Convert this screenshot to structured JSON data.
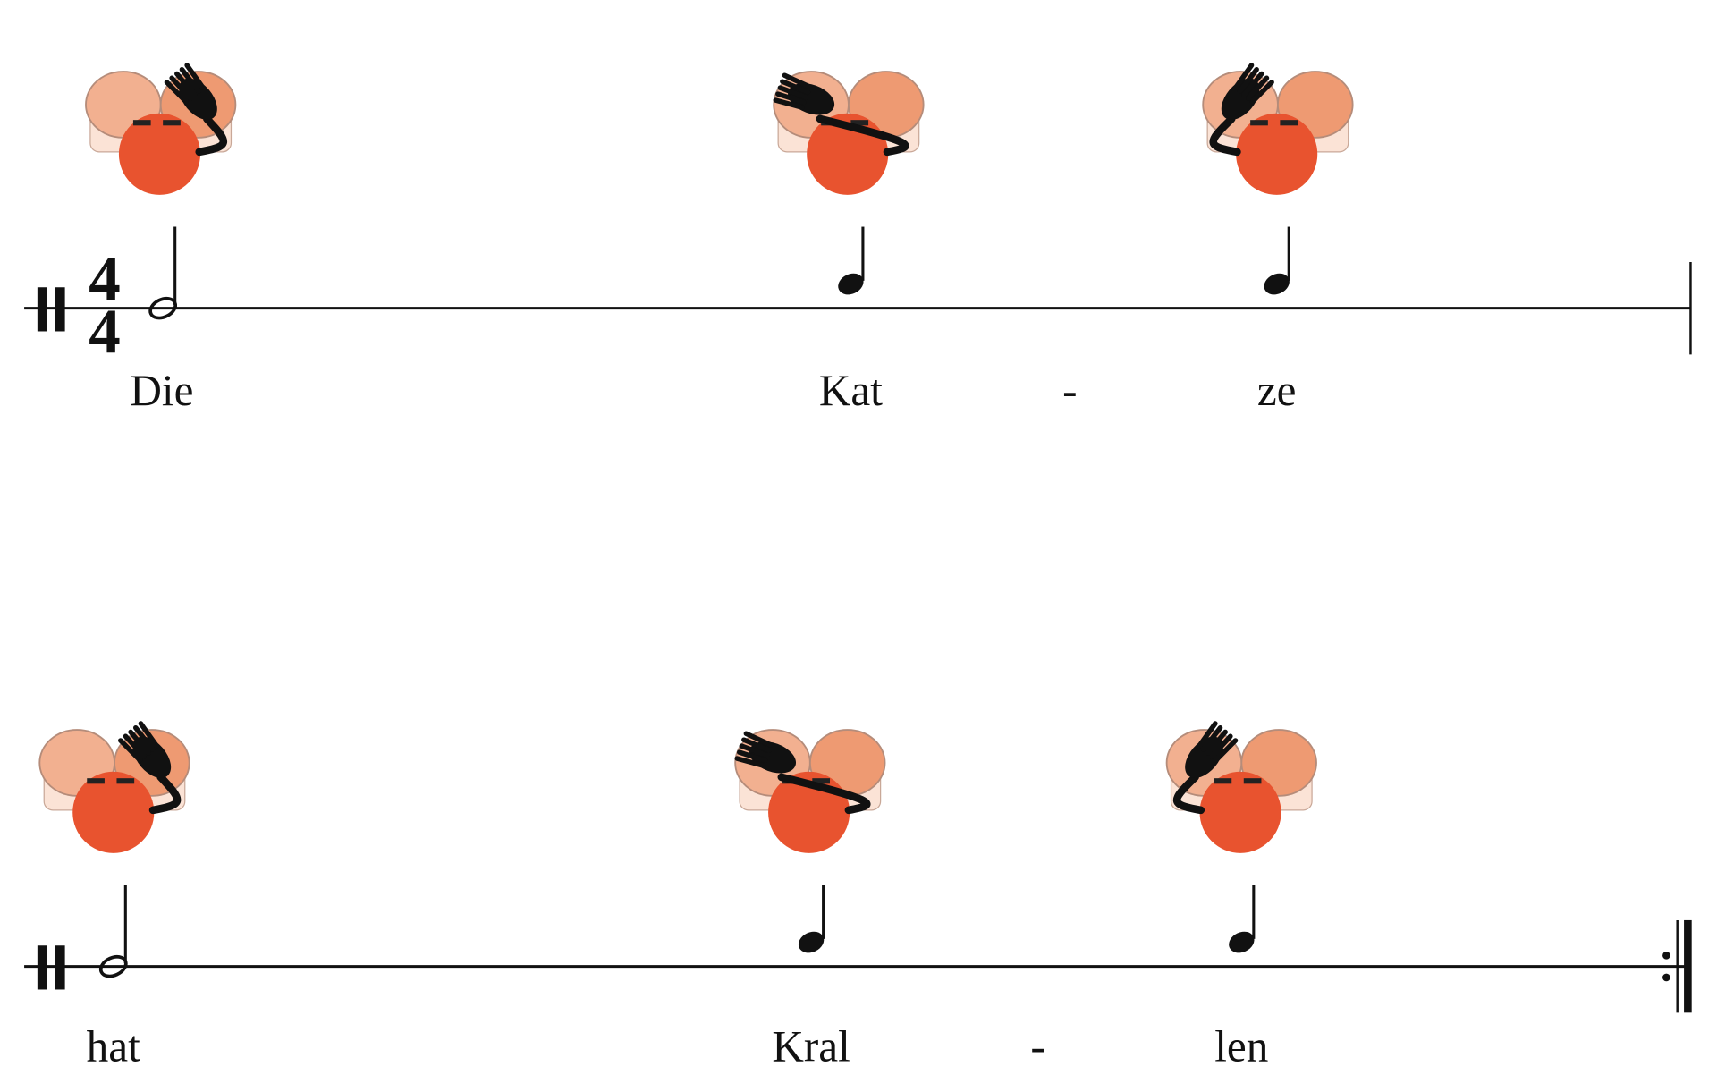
{
  "time_signature": {
    "numerator": "4",
    "denominator": "4"
  },
  "staves": [
    {
      "lyrics": [
        "Die",
        "Kat",
        "-",
        "ze"
      ]
    },
    {
      "lyrics": [
        "hat",
        "Kral",
        "-",
        "len"
      ]
    }
  ]
}
